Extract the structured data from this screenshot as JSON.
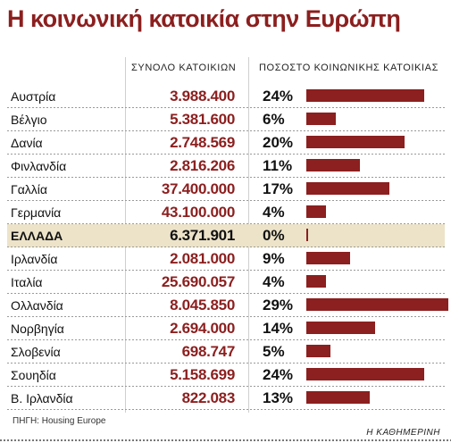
{
  "title": "Η κοινωνική κατοικία στην Ευρώπη",
  "headers": {
    "total": "ΣΥΝΟΛΟ ΚΑΤΟΙΚΙΩΝ",
    "share": "ΠΟΣΟΣΤΟ ΚΟΙΝΩΝΙΚΗΣ ΚΑΤΟΙΚΙΑΣ"
  },
  "rows": [
    {
      "country": "Αυστρία",
      "total": "3.988.400",
      "pct": "24%"
    },
    {
      "country": "Βέλγιο",
      "total": "5.381.600",
      "pct": "6%"
    },
    {
      "country": "Δανία",
      "total": "2.748.569",
      "pct": "20%"
    },
    {
      "country": "Φινλανδία",
      "total": "2.816.206",
      "pct": "11%"
    },
    {
      "country": "Γαλλία",
      "total": "37.400.000",
      "pct": "17%"
    },
    {
      "country": "Γερμανία",
      "total": "43.100.000",
      "pct": "4%"
    },
    {
      "country": "ΕΛΛΑΔΑ",
      "total": "6.371.901",
      "pct": "0%"
    },
    {
      "country": "Ιρλανδία",
      "total": "2.081.000",
      "pct": "9%"
    },
    {
      "country": "Ιταλία",
      "total": "25.690.057",
      "pct": "4%"
    },
    {
      "country": "Ολλανδία",
      "total": "8.045.850",
      "pct": "29%"
    },
    {
      "country": "Νορβηγία",
      "total": "2.694.000",
      "pct": "14%"
    },
    {
      "country": "Σλοβενία",
      "total": "698.747",
      "pct": "5%"
    },
    {
      "country": "Σουηδία",
      "total": "5.158.699",
      "pct": "24%"
    },
    {
      "country": "Β. Ιρλανδία",
      "total": "822.083",
      "pct": "13%"
    }
  ],
  "chart_data": {
    "type": "bar",
    "title": "Η κοινωνική κατοικία στην Ευρώπη",
    "categories": [
      "Αυστρία",
      "Βέλγιο",
      "Δανία",
      "Φινλανδία",
      "Γαλλία",
      "Γερμανία",
      "ΕΛΛΑΔΑ",
      "Ιρλανδία",
      "Ιταλία",
      "Ολλανδία",
      "Νορβηγία",
      "Σλοβενία",
      "Σουηδία",
      "Β. Ιρλανδία"
    ],
    "series": [
      {
        "name": "ΣΥΝΟΛΟ ΚΑΤΟΙΚΙΩΝ",
        "values": [
          3988400,
          5381600,
          2748569,
          2816206,
          37400000,
          43100000,
          6371901,
          2081000,
          25690057,
          8045850,
          2694000,
          698747,
          5158699,
          822083
        ]
      },
      {
        "name": "ΠΟΣΟΣΤΟ ΚΟΙΝΩΝΙΚΗΣ ΚΑΤΟΙΚΙΑΣ",
        "values": [
          24,
          6,
          20,
          11,
          17,
          4,
          0,
          9,
          4,
          29,
          14,
          5,
          24,
          13
        ]
      }
    ],
    "xlim": [
      0,
      29
    ],
    "highlight": "ΕΛΛΑΔΑ",
    "bar_color": "#8c1f1f",
    "highlight_color": "#ece3c9"
  },
  "source": "ΠΗΓΗ: Housing Europe",
  "brand": "Η ΚΑΘΗΜΕΡΙΝΗ"
}
